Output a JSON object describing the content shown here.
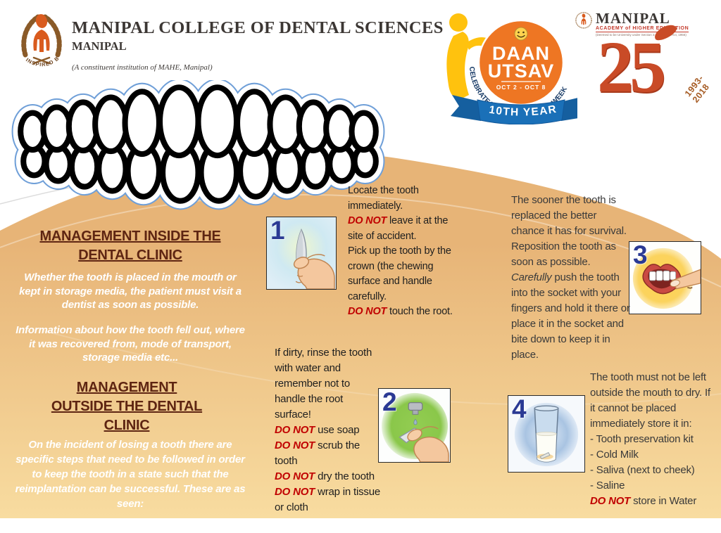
{
  "colors": {
    "tan_top": "#e7b477",
    "tan_bottom": "#f8dca0",
    "heading_brown": "#5e2512",
    "donot_red": "#c00000",
    "step_number_navy": "#2b3a94",
    "daan_orange": "#ee7623",
    "daan_yellow": "#ffc20e",
    "daan_blue": "#1a70b8",
    "mahe_red": "#c94b27"
  },
  "header": {
    "college": {
      "title": "MANIPAL COLLEGE OF DENTAL SCIENCES",
      "subtitle": "MANIPAL",
      "note": "(A constituent institution of MAHE, Manipal)",
      "logo_motto": "INSPIRED BY LIFE"
    },
    "daan": {
      "word1": "DAAN",
      "word2": "UTSAV",
      "dates": "OCT 2 - OCT 8",
      "arc": "CELEBRATE THE JOY OF GIVING WEEK",
      "ribbon": "10TH YEAR"
    },
    "mahe": {
      "brand": "MANIPAL",
      "academy": "ACADEMY of HIGHER EDUCATION",
      "fineprint": "(Deemed to be University under Section 3 of the UGC Act, 1956)",
      "big_number": "25",
      "years": "1993-2018"
    }
  },
  "left": {
    "heading1": "MANAGEMENT INSIDE THE DENTAL CLINIC",
    "para1": "Whether the tooth is placed in the mouth or kept in storage media, the patient must visit a dentist as soon as possible.",
    "para2": "Information about how the tooth fell out, where it was recovered from, mode of transport, storage media etc...",
    "heading2": "MANAGEMENT OUTSIDE THE DENTAL CLINIC",
    "para3": "On the incident of losing a tooth there are specific steps that need to be followed in order to keep the tooth in a state such that the reimplantation can be successful. These are as seen:"
  },
  "steps": {
    "s1": {
      "num": "1",
      "icon": "hand-holding-tooth-icon",
      "rich": [
        {
          "t": " Locate the tooth immediately.\n",
          "s": "n"
        },
        {
          "t": "DO NOT",
          "s": "r"
        },
        {
          "t": " leave it at the site of accident.\nPick up the tooth by the crown (the chewing surface and handle carefully.\n",
          "s": "n"
        },
        {
          "t": "DO NOT",
          "s": "r"
        },
        {
          "t": " touch the root.",
          "s": "n"
        }
      ]
    },
    "s2": {
      "num": "2",
      "icon": "rinsing-tooth-under-tap-icon",
      "rich": [
        {
          "t": "If dirty, rinse the tooth with water and remember not to handle the root surface!\n",
          "s": "n"
        },
        {
          "t": "DO NOT",
          "s": "r"
        },
        {
          "t": " use soap\n",
          "s": "n"
        },
        {
          "t": "DO NOT",
          "s": "r"
        },
        {
          "t": " scrub the tooth\n",
          "s": "n"
        },
        {
          "t": "DO NOT",
          "s": "r"
        },
        {
          "t": " dry the tooth\n",
          "s": "n"
        },
        {
          "t": "DO NOT",
          "s": "r"
        },
        {
          "t": " wrap in tissue or cloth",
          "s": "n"
        }
      ]
    },
    "s3": {
      "num": "3",
      "icon": "finger-repositioning-tooth-in-mouth-icon",
      "rich": [
        {
          "t": "The sooner the tooth is replaced the better chance it has for survival. Reposition the tooth as soon as possible.\n",
          "s": "n"
        },
        {
          "t": "Carefully",
          "s": "i"
        },
        {
          "t": " push the tooth into the socket with your fingers and hold it there or place it in the socket and bite down to keep it in place.",
          "s": "n"
        }
      ]
    },
    "s4": {
      "num": "4",
      "icon": "tooth-in-glass-of-milk-icon",
      "rich": [
        {
          "t": "The tooth must not be left outside the mouth to dry. If it cannot be placed immediately store it in:\n- Tooth preservation kit\n- Cold Milk\n- Saliva  (next to cheek)\n- Saline\n",
          "s": "n"
        },
        {
          "t": "DO NOT",
          "s": "r"
        },
        {
          "t": " store in Water",
          "s": "n"
        }
      ]
    }
  }
}
